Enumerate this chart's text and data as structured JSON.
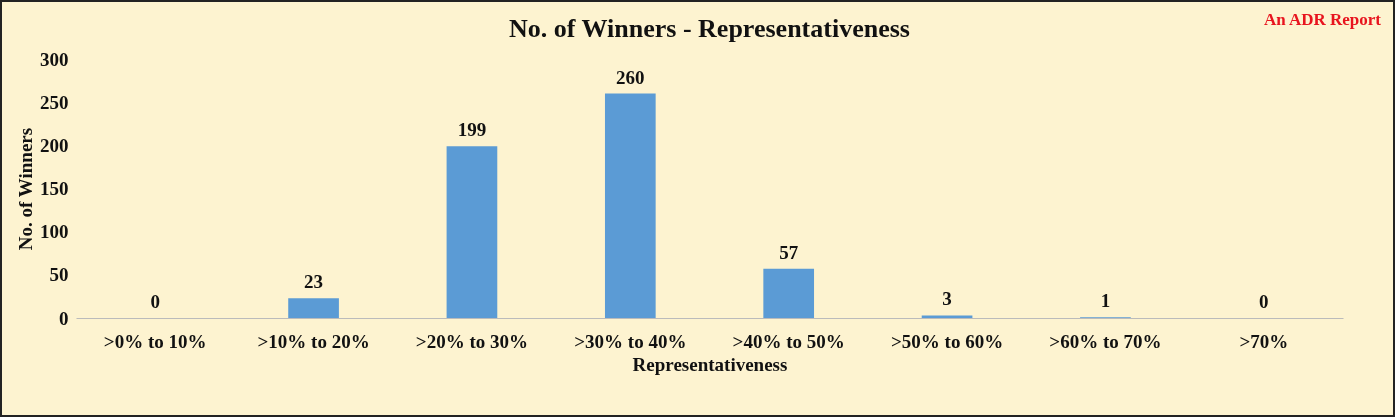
{
  "chart_data": {
    "type": "bar",
    "title": "No. of Winners - Representativeness",
    "xlabel": "Representativeness",
    "ylabel": "No. of Winners",
    "categories": [
      ">0% to 10%",
      ">10% to 20%",
      ">20% to 30%",
      ">30% to 40%",
      ">40% to 50%",
      ">50% to 60%",
      ">60% to 70%",
      ">70%"
    ],
    "values": [
      0,
      23,
      199,
      260,
      57,
      3,
      1,
      0
    ],
    "color": "#5b9bd5",
    "ylim": [
      0,
      300
    ],
    "yticks": [
      0,
      50,
      100,
      150,
      200,
      250,
      300
    ],
    "grid": false,
    "data_labels": true,
    "annotations": [
      "An ADR Report"
    ]
  }
}
